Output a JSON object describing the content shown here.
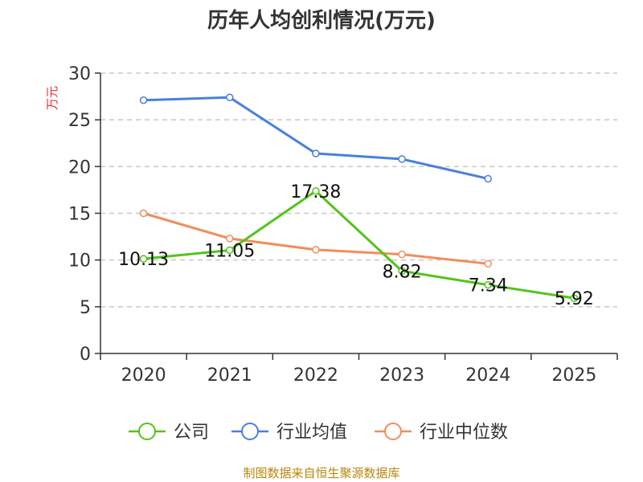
{
  "chart_data": {
    "type": "line",
    "title": "历年人均创利情况(万元)",
    "ylabel": "万元",
    "xlabel": "",
    "categories": [
      "2020",
      "2021",
      "2022",
      "2023",
      "2024",
      "2025"
    ],
    "ylim": [
      0,
      30
    ],
    "yticks": [
      0,
      5,
      10,
      15,
      20,
      25,
      30
    ],
    "grid": true,
    "legend_position": "bottom",
    "series": [
      {
        "name": "公司",
        "color": "#52c41a",
        "values": [
          10.13,
          11.05,
          17.38,
          8.82,
          7.34,
          5.92
        ],
        "labels": [
          "10.13",
          "11.05",
          "17.38",
          "8.82",
          "7.34",
          "5.92"
        ],
        "show_labels": true
      },
      {
        "name": "行业均值",
        "color": "#4a7fdc",
        "values": [
          27.1,
          27.4,
          21.4,
          20.8,
          18.7,
          null
        ],
        "show_labels": false
      },
      {
        "name": "行业中位数",
        "color": "#f28c5a",
        "values": [
          15.0,
          12.3,
          11.1,
          10.6,
          9.6,
          null
        ],
        "show_labels": false
      }
    ]
  },
  "footer": {
    "source": "制图数据来自恒生聚源数据库",
    "source_color": "#b8860b"
  }
}
